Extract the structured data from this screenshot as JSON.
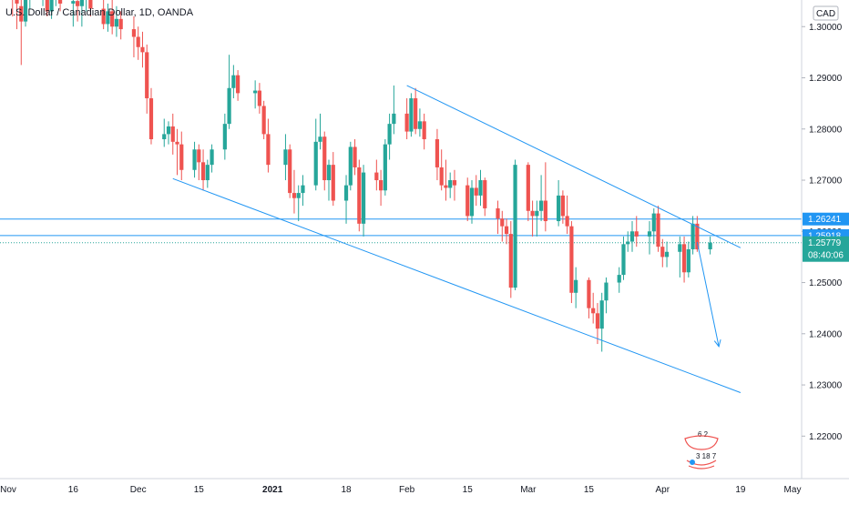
{
  "header": {
    "title": "U.S. Dollar / Canadian Dollar, 1D, OANDA"
  },
  "axis": {
    "currency": "CAD"
  },
  "colors": {
    "up": "#26a69a",
    "down": "#ef5350",
    "line": "#2196f3",
    "tag": "#26a69a"
  },
  "chart_data": {
    "type": "candlestick",
    "title": "U.S. Dollar / Canadian Dollar, 1D, OANDA",
    "ylim": [
      1.2117,
      1.3052
    ],
    "y_ticks": [
      "1.30000",
      "1.29000",
      "1.28000",
      "1.27000",
      "1.26000",
      "1.25000",
      "1.24000",
      "1.23000",
      "1.22000"
    ],
    "x_ticks": [
      "Nov",
      "16",
      "Dec",
      "15",
      "2021",
      "18",
      "Feb",
      "15",
      "Mar",
      "15",
      "Apr",
      "19",
      "May"
    ],
    "price_labels": [
      {
        "value": 1.26241,
        "text": "1.26241",
        "color": "#2196f3"
      },
      {
        "value": 1.25918,
        "text": "1.25918",
        "color": "#2196f3"
      },
      {
        "value": 1.25779,
        "text": "1.25779",
        "sub": "08:40:06",
        "color": "#26a69a"
      }
    ],
    "horizontal_lines": [
      1.26241,
      1.25918
    ],
    "last_price_line": 1.25779,
    "channel_lines": [
      {
        "from": [
          "Feb 01",
          1.2885
        ],
        "to": [
          "Apr 19",
          1.2568
        ]
      },
      {
        "from": [
          "Dec 09",
          1.2703
        ],
        "to": [
          "Apr 19",
          1.2285
        ]
      }
    ],
    "projection_arrow": {
      "from": [
        "Apr 09",
        1.2579
      ],
      "to": [
        "Apr 14",
        1.2375
      ]
    },
    "watermark": {
      "line1": "6 2",
      "line2": "3 18 7"
    },
    "candles": [
      {
        "x": "Nov 02",
        "o": 1.3085,
        "h": 1.3098,
        "l": 1.302,
        "c": 1.307
      },
      {
        "x": "Nov 03",
        "o": 1.307,
        "h": 1.3098,
        "l": 1.2995,
        "c": 1.3045
      },
      {
        "x": "Nov 04",
        "o": 1.304,
        "h": 1.307,
        "l": 1.2925,
        "c": 1.301
      },
      {
        "x": "Nov 05",
        "o": 1.301,
        "h": 1.308,
        "l": 1.3,
        "c": 1.306
      },
      {
        "x": "Nov 06",
        "o": 1.306,
        "h": 1.3085,
        "l": 1.3035,
        "c": 1.3072
      },
      {
        "x": "Nov 09",
        "o": 1.3072,
        "h": 1.309,
        "l": 1.304,
        "c": 1.308
      },
      {
        "x": "Nov 10",
        "o": 1.308,
        "h": 1.3095,
        "l": 1.302,
        "c": 1.303
      },
      {
        "x": "Nov 11",
        "o": 1.303,
        "h": 1.308,
        "l": 1.3015,
        "c": 1.306
      },
      {
        "x": "Nov 12",
        "o": 1.306,
        "h": 1.309,
        "l": 1.304,
        "c": 1.3075
      },
      {
        "x": "Nov 13",
        "o": 1.3075,
        "h": 1.3095,
        "l": 1.303,
        "c": 1.3045
      },
      {
        "x": "Nov 16",
        "o": 1.3045,
        "h": 1.3075,
        "l": 1.3,
        "c": 1.305
      },
      {
        "x": "Nov 17",
        "o": 1.305,
        "h": 1.308,
        "l": 1.301,
        "c": 1.304
      },
      {
        "x": "Nov 18",
        "o": 1.304,
        "h": 1.307,
        "l": 1.3,
        "c": 1.3055
      },
      {
        "x": "Nov 19",
        "o": 1.3055,
        "h": 1.309,
        "l": 1.303,
        "c": 1.307
      },
      {
        "x": "Nov 20",
        "o": 1.307,
        "h": 1.3085,
        "l": 1.302,
        "c": 1.3035
      },
      {
        "x": "Nov 23",
        "o": 1.3035,
        "h": 1.306,
        "l": 1.2995,
        "c": 1.3005
      },
      {
        "x": "Nov 24",
        "o": 1.3005,
        "h": 1.3045,
        "l": 1.299,
        "c": 1.303
      },
      {
        "x": "Nov 25",
        "o": 1.303,
        "h": 1.3055,
        "l": 1.2985,
        "c": 1.3
      },
      {
        "x": "Nov 26",
        "o": 1.3,
        "h": 1.304,
        "l": 1.298,
        "c": 1.3015
      },
      {
        "x": "Nov 27",
        "o": 1.3015,
        "h": 1.303,
        "l": 1.2975,
        "c": 1.2995
      },
      {
        "x": "Nov 30",
        "o": 1.2995,
        "h": 1.302,
        "l": 1.294,
        "c": 1.298
      },
      {
        "x": "Dec 01",
        "o": 1.298,
        "h": 1.3,
        "l": 1.2935,
        "c": 1.296
      },
      {
        "x": "Dec 02",
        "o": 1.296,
        "h": 1.299,
        "l": 1.292,
        "c": 1.295
      },
      {
        "x": "Dec 03",
        "o": 1.295,
        "h": 1.2965,
        "l": 1.283,
        "c": 1.286
      },
      {
        "x": "Dec 04",
        "o": 1.286,
        "h": 1.288,
        "l": 1.277,
        "c": 1.278
      },
      {
        "x": "Dec 07",
        "o": 1.278,
        "h": 1.282,
        "l": 1.2765,
        "c": 1.279
      },
      {
        "x": "Dec 08",
        "o": 1.279,
        "h": 1.2815,
        "l": 1.277,
        "c": 1.2805
      },
      {
        "x": "Dec 09",
        "o": 1.2805,
        "h": 1.283,
        "l": 1.275,
        "c": 1.2775
      },
      {
        "x": "Dec 10",
        "o": 1.2775,
        "h": 1.28,
        "l": 1.271,
        "c": 1.277
      },
      {
        "x": "Dec 11",
        "o": 1.277,
        "h": 1.2795,
        "l": 1.27,
        "c": 1.272
      },
      {
        "x": "Dec 14",
        "o": 1.272,
        "h": 1.2775,
        "l": 1.2705,
        "c": 1.276
      },
      {
        "x": "Dec 15",
        "o": 1.276,
        "h": 1.277,
        "l": 1.27,
        "c": 1.2735
      },
      {
        "x": "Dec 16",
        "o": 1.2735,
        "h": 1.276,
        "l": 1.268,
        "c": 1.27
      },
      {
        "x": "Dec 17",
        "o": 1.27,
        "h": 1.274,
        "l": 1.2685,
        "c": 1.273
      },
      {
        "x": "Dec 18",
        "o": 1.273,
        "h": 1.277,
        "l": 1.2715,
        "c": 1.276
      },
      {
        "x": "Dec 21",
        "o": 1.276,
        "h": 1.283,
        "l": 1.274,
        "c": 1.281
      },
      {
        "x": "Dec 22",
        "o": 1.281,
        "h": 1.2945,
        "l": 1.28,
        "c": 1.288
      },
      {
        "x": "Dec 23",
        "o": 1.288,
        "h": 1.2925,
        "l": 1.286,
        "c": 1.2905
      },
      {
        "x": "Dec 24",
        "o": 1.2905,
        "h": 1.2915,
        "l": 1.2855,
        "c": 1.287
      },
      {
        "x": "Dec 28",
        "o": 1.287,
        "h": 1.2895,
        "l": 1.284,
        "c": 1.2875
      },
      {
        "x": "Dec 29",
        "o": 1.2875,
        "h": 1.289,
        "l": 1.283,
        "c": 1.2845
      },
      {
        "x": "Dec 30",
        "o": 1.2845,
        "h": 1.2855,
        "l": 1.278,
        "c": 1.279
      },
      {
        "x": "Dec 31",
        "o": 1.279,
        "h": 1.282,
        "l": 1.2715,
        "c": 1.273
      },
      {
        "x": "Jan 04",
        "o": 1.273,
        "h": 1.279,
        "l": 1.27,
        "c": 1.276
      },
      {
        "x": "Jan 05",
        "o": 1.276,
        "h": 1.277,
        "l": 1.2665,
        "c": 1.2675
      },
      {
        "x": "Jan 06",
        "o": 1.2675,
        "h": 1.272,
        "l": 1.2635,
        "c": 1.2665
      },
      {
        "x": "Jan 07",
        "o": 1.2665,
        "h": 1.269,
        "l": 1.262,
        "c": 1.2675
      },
      {
        "x": "Jan 08",
        "o": 1.2675,
        "h": 1.271,
        "l": 1.265,
        "c": 1.269
      },
      {
        "x": "Jan 11",
        "o": 1.269,
        "h": 1.282,
        "l": 1.268,
        "c": 1.2775
      },
      {
        "x": "Jan 12",
        "o": 1.2775,
        "h": 1.283,
        "l": 1.276,
        "c": 1.2785
      },
      {
        "x": "Jan 13",
        "o": 1.2785,
        "h": 1.2795,
        "l": 1.268,
        "c": 1.27
      },
      {
        "x": "Jan 14",
        "o": 1.27,
        "h": 1.274,
        "l": 1.266,
        "c": 1.273
      },
      {
        "x": "Jan 15",
        "o": 1.273,
        "h": 1.2755,
        "l": 1.265,
        "c": 1.266
      },
      {
        "x": "Jan 18",
        "o": 1.266,
        "h": 1.271,
        "l": 1.2615,
        "c": 1.269
      },
      {
        "x": "Jan 19",
        "o": 1.269,
        "h": 1.2775,
        "l": 1.268,
        "c": 1.2765
      },
      {
        "x": "Jan 20",
        "o": 1.2765,
        "h": 1.278,
        "l": 1.271,
        "c": 1.2725
      },
      {
        "x": "Jan 21",
        "o": 1.2725,
        "h": 1.274,
        "l": 1.26,
        "c": 1.2615
      },
      {
        "x": "Jan 22",
        "o": 1.2615,
        "h": 1.273,
        "l": 1.259,
        "c": 1.2715
      },
      {
        "x": "Jan 25",
        "o": 1.2715,
        "h": 1.274,
        "l": 1.268,
        "c": 1.27
      },
      {
        "x": "Jan 26",
        "o": 1.27,
        "h": 1.272,
        "l": 1.265,
        "c": 1.268
      },
      {
        "x": "Jan 27",
        "o": 1.268,
        "h": 1.278,
        "l": 1.267,
        "c": 1.277
      },
      {
        "x": "Jan 28",
        "o": 1.277,
        "h": 1.283,
        "l": 1.274,
        "c": 1.281
      },
      {
        "x": "Jan 29",
        "o": 1.281,
        "h": 1.2885,
        "l": 1.279,
        "c": 1.283
      },
      {
        "x": "Feb 01",
        "o": 1.283,
        "h": 1.286,
        "l": 1.278,
        "c": 1.2795
      },
      {
        "x": "Feb 02",
        "o": 1.2795,
        "h": 1.287,
        "l": 1.2785,
        "c": 1.286
      },
      {
        "x": "Feb 03",
        "o": 1.286,
        "h": 1.288,
        "l": 1.279,
        "c": 1.28
      },
      {
        "x": "Feb 04",
        "o": 1.28,
        "h": 1.284,
        "l": 1.2785,
        "c": 1.2815
      },
      {
        "x": "Feb 05",
        "o": 1.2815,
        "h": 1.283,
        "l": 1.276,
        "c": 1.278
      },
      {
        "x": "Feb 08",
        "o": 1.278,
        "h": 1.28,
        "l": 1.27,
        "c": 1.2725
      },
      {
        "x": "Feb 09",
        "o": 1.2725,
        "h": 1.276,
        "l": 1.268,
        "c": 1.269
      },
      {
        "x": "Feb 10",
        "o": 1.269,
        "h": 1.274,
        "l": 1.266,
        "c": 1.2685
      },
      {
        "x": "Feb 11",
        "o": 1.2685,
        "h": 1.2715,
        "l": 1.2665,
        "c": 1.27
      },
      {
        "x": "Feb 12",
        "o": 1.27,
        "h": 1.272,
        "l": 1.266,
        "c": 1.269
      },
      {
        "x": "Feb 15",
        "o": 1.269,
        "h": 1.2705,
        "l": 1.262,
        "c": 1.263
      },
      {
        "x": "Feb 16",
        "o": 1.263,
        "h": 1.27,
        "l": 1.2615,
        "c": 1.2685
      },
      {
        "x": "Feb 17",
        "o": 1.2685,
        "h": 1.271,
        "l": 1.265,
        "c": 1.267
      },
      {
        "x": "Feb 18",
        "o": 1.267,
        "h": 1.272,
        "l": 1.265,
        "c": 1.27
      },
      {
        "x": "Feb 19",
        "o": 1.27,
        "h": 1.2705,
        "l": 1.263,
        "c": 1.2645
      },
      {
        "x": "Feb 22",
        "o": 1.2645,
        "h": 1.266,
        "l": 1.2595,
        "c": 1.2625
      },
      {
        "x": "Feb 23",
        "o": 1.2625,
        "h": 1.264,
        "l": 1.258,
        "c": 1.261
      },
      {
        "x": "Feb 24",
        "o": 1.261,
        "h": 1.2625,
        "l": 1.2575,
        "c": 1.2595
      },
      {
        "x": "Feb 25",
        "o": 1.2595,
        "h": 1.262,
        "l": 1.247,
        "c": 1.249
      },
      {
        "x": "Feb 26",
        "o": 1.249,
        "h": 1.274,
        "l": 1.2485,
        "c": 1.273
      },
      {
        "x": "Mar 01",
        "o": 1.273,
        "h": 1.2735,
        "l": 1.262,
        "c": 1.264
      },
      {
        "x": "Mar 02",
        "o": 1.264,
        "h": 1.266,
        "l": 1.259,
        "c": 1.263
      },
      {
        "x": "Mar 03",
        "o": 1.263,
        "h": 1.266,
        "l": 1.259,
        "c": 1.264
      },
      {
        "x": "Mar 04",
        "o": 1.264,
        "h": 1.271,
        "l": 1.262,
        "c": 1.266
      },
      {
        "x": "Mar 05",
        "o": 1.266,
        "h": 1.2735,
        "l": 1.26,
        "c": 1.262
      },
      {
        "x": "Mar 08",
        "o": 1.262,
        "h": 1.27,
        "l": 1.261,
        "c": 1.267
      },
      {
        "x": "Mar 09",
        "o": 1.267,
        "h": 1.268,
        "l": 1.2615,
        "c": 1.263
      },
      {
        "x": "Mar 10",
        "o": 1.263,
        "h": 1.267,
        "l": 1.2595,
        "c": 1.261
      },
      {
        "x": "Mar 11",
        "o": 1.261,
        "h": 1.262,
        "l": 1.246,
        "c": 1.248
      },
      {
        "x": "Mar 12",
        "o": 1.248,
        "h": 1.253,
        "l": 1.245,
        "c": 1.2505
      },
      {
        "x": "Mar 15",
        "o": 1.2505,
        "h": 1.251,
        "l": 1.243,
        "c": 1.245
      },
      {
        "x": "Mar 16",
        "o": 1.245,
        "h": 1.248,
        "l": 1.242,
        "c": 1.244
      },
      {
        "x": "Mar 17",
        "o": 1.244,
        "h": 1.246,
        "l": 1.238,
        "c": 1.241
      },
      {
        "x": "Mar 18",
        "o": 1.241,
        "h": 1.248,
        "l": 1.2365,
        "c": 1.2465
      },
      {
        "x": "Mar 19",
        "o": 1.2465,
        "h": 1.251,
        "l": 1.244,
        "c": 1.25
      },
      {
        "x": "Mar 22",
        "o": 1.25,
        "h": 1.253,
        "l": 1.248,
        "c": 1.2515
      },
      {
        "x": "Mar 23",
        "o": 1.2515,
        "h": 1.259,
        "l": 1.2505,
        "c": 1.2575
      },
      {
        "x": "Mar 24",
        "o": 1.2575,
        "h": 1.26,
        "l": 1.256,
        "c": 1.258
      },
      {
        "x": "Mar 25",
        "o": 1.258,
        "h": 1.262,
        "l": 1.256,
        "c": 1.26
      },
      {
        "x": "Mar 26",
        "o": 1.26,
        "h": 1.263,
        "l": 1.257,
        "c": 1.259
      },
      {
        "x": "Mar 29",
        "o": 1.259,
        "h": 1.262,
        "l": 1.2555,
        "c": 1.26
      },
      {
        "x": "Mar 30",
        "o": 1.26,
        "h": 1.2645,
        "l": 1.2575,
        "c": 1.2635
      },
      {
        "x": "Mar 31",
        "o": 1.2635,
        "h": 1.265,
        "l": 1.256,
        "c": 1.257
      },
      {
        "x": "Apr 01",
        "o": 1.257,
        "h": 1.2585,
        "l": 1.253,
        "c": 1.255
      },
      {
        "x": "Apr 02",
        "o": 1.255,
        "h": 1.258,
        "l": 1.253,
        "c": 1.256
      },
      {
        "x": "Apr 05",
        "o": 1.256,
        "h": 1.259,
        "l": 1.251,
        "c": 1.2575
      },
      {
        "x": "Apr 06",
        "o": 1.2575,
        "h": 1.259,
        "l": 1.25,
        "c": 1.252
      },
      {
        "x": "Apr 07",
        "o": 1.252,
        "h": 1.258,
        "l": 1.251,
        "c": 1.2565
      },
      {
        "x": "Apr 08",
        "o": 1.2565,
        "h": 1.263,
        "l": 1.2555,
        "c": 1.2615
      },
      {
        "x": "Apr 09",
        "o": 1.2615,
        "h": 1.263,
        "l": 1.256,
        "c": 1.2565
      },
      {
        "x": "Apr 12",
        "o": 1.2565,
        "h": 1.259,
        "l": 1.2555,
        "c": 1.2578
      }
    ]
  }
}
